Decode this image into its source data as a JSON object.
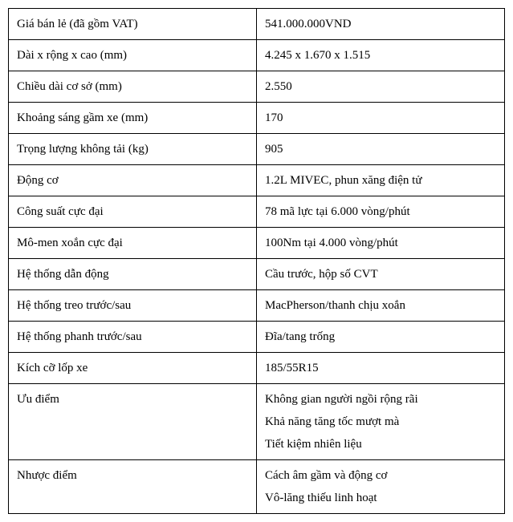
{
  "table": {
    "rows": [
      {
        "label": "Giá bán lẻ (đã gồm VAT)",
        "value": "541.000.000VND"
      },
      {
        "label": "Dài x rộng x cao (mm)",
        "value": "4.245 x 1.670 x 1.515"
      },
      {
        "label": "Chiều dài cơ sở (mm)",
        "value": "2.550"
      },
      {
        "label": "Khoảng sáng gầm xe (mm)",
        "value": "170"
      },
      {
        "label": "Trọng lượng không tải (kg)",
        "value": "905"
      },
      {
        "label": "Động cơ",
        "value": "1.2L MIVEC, phun xăng điện tử"
      },
      {
        "label": "Công suất cực đại",
        "value": "78 mã lực tại 6.000 vòng/phút"
      },
      {
        "label": "Mô-men xoắn cực đại",
        "value": "100Nm tại 4.000 vòng/phút"
      },
      {
        "label": "Hệ thống dẫn động",
        "value": "Cầu trước, hộp số CVT"
      },
      {
        "label": "Hệ thống treo trước/sau",
        "value": "MacPherson/thanh chịu xoắn"
      },
      {
        "label": "Hệ thống phanh trước/sau",
        "value": "Đĩa/tang trống"
      },
      {
        "label": "Kích cỡ lốp xe",
        "value": "185/55R15"
      }
    ],
    "multi_rows": [
      {
        "label": "Ưu điểm",
        "values": [
          "Không gian người ngồi rộng rãi",
          "Khả năng tăng tốc mượt mà",
          "Tiết kiệm nhiên liệu"
        ]
      },
      {
        "label": "Nhược điểm",
        "values": [
          "Cách âm gầm và động cơ",
          "Vô-lăng thiếu linh hoạt"
        ]
      }
    ]
  },
  "styling": {
    "font_family": "Times New Roman",
    "font_size": 15,
    "border_color": "#000000",
    "background_color": "#ffffff",
    "text_color": "#000000",
    "cell_padding_v": 7,
    "cell_padding_h": 10,
    "label_col_width_pct": 50,
    "value_col_width_pct": 50
  }
}
